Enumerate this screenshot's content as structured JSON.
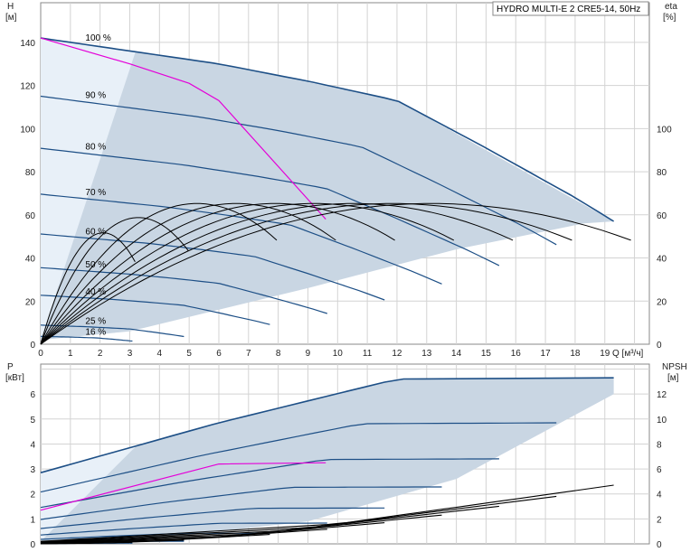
{
  "chart_data": [
    {
      "type": "line",
      "title": "HYDRO MULTI-E 2 CRE5-14, 50Hz",
      "y_left_label": "H",
      "y_left_unit": "[м]",
      "y_right_label": "eta",
      "y_right_unit": "[%]",
      "x_label": "Q [м³/ч]",
      "xlim": [
        0,
        20.5
      ],
      "ylim": [
        0,
        150
      ],
      "eta_lim": [
        0,
        150
      ],
      "x_ticks": [
        "0",
        "1",
        "2",
        "3",
        "4",
        "5",
        "6",
        "7",
        "8",
        "9",
        "10",
        "11",
        "12",
        "13",
        "14",
        "15",
        "16",
        "17",
        "18",
        "19"
      ],
      "y_ticks": [
        "0",
        "20",
        "40",
        "60",
        "80",
        "100",
        "120",
        "140"
      ],
      "eta_ticks": [
        "0",
        "20",
        "40",
        "60",
        "80",
        "100"
      ],
      "speed_labels": [
        "100 %",
        "90 %",
        "80 %",
        "70 %",
        "60 %",
        "50 %",
        "40 %",
        "25 %",
        "16 %"
      ],
      "speed_fractions": [
        1.0,
        0.9,
        0.8,
        0.7,
        0.6,
        0.5,
        0.4,
        0.25,
        0.16
      ],
      "head_100": {
        "q": [
          0,
          3,
          6,
          9,
          12,
          15,
          18,
          19.3
        ],
        "h": [
          142,
          136,
          130,
          122,
          113,
          91,
          68,
          57
        ]
      },
      "operating_region": [
        [
          0,
          142
        ],
        [
          6,
          130
        ],
        [
          12,
          113
        ],
        [
          19.3,
          57
        ],
        [
          18.3,
          56
        ],
        [
          14,
          44
        ],
        [
          9,
          26
        ],
        [
          3,
          6
        ],
        [
          0,
          2
        ]
      ],
      "light_region": [
        [
          0,
          142
        ],
        [
          3.2,
          136
        ],
        [
          0,
          2
        ]
      ],
      "pink_curve": {
        "q": [
          0,
          3,
          5,
          6,
          9.6
        ],
        "h": [
          142,
          130,
          121,
          113,
          58
        ]
      },
      "eta_max_100": 62,
      "eta_best_q_100": 12.5
    },
    {
      "type": "line",
      "y_left_label": "P",
      "y_left_unit": "[кВт]",
      "y_right_label": "NPSH",
      "y_right_unit": "[м]",
      "xlim": [
        0,
        20.5
      ],
      "ylim": [
        0,
        7.2
      ],
      "npsh_lim": [
        0,
        14.4
      ],
      "p_ticks": [
        "0",
        "1",
        "2",
        "3",
        "4",
        "5",
        "6"
      ],
      "npsh_ticks": [
        "0",
        "2",
        "4",
        "6",
        "8",
        "10",
        "12"
      ],
      "power_100": {
        "q": [
          0,
          6,
          12,
          19.3
        ],
        "p": [
          2.85,
          4.85,
          6.6,
          6.65
        ]
      },
      "pink_power": {
        "q": [
          0,
          6,
          9.6
        ],
        "p": [
          1.35,
          3.2,
          3.25
        ]
      },
      "npsh": {
        "q": [
          0,
          10,
          19.3
        ],
        "n": [
          0.2,
          1.6,
          4.7
        ]
      }
    }
  ],
  "colors": {
    "region": "#c9d6e3",
    "light_region": "#e8f0f8",
    "curve": "#1d4f86",
    "thin_curve": "#1e4a78",
    "pink": "#e400d8",
    "eta": "#000000",
    "grid": "#d3d3d3"
  }
}
